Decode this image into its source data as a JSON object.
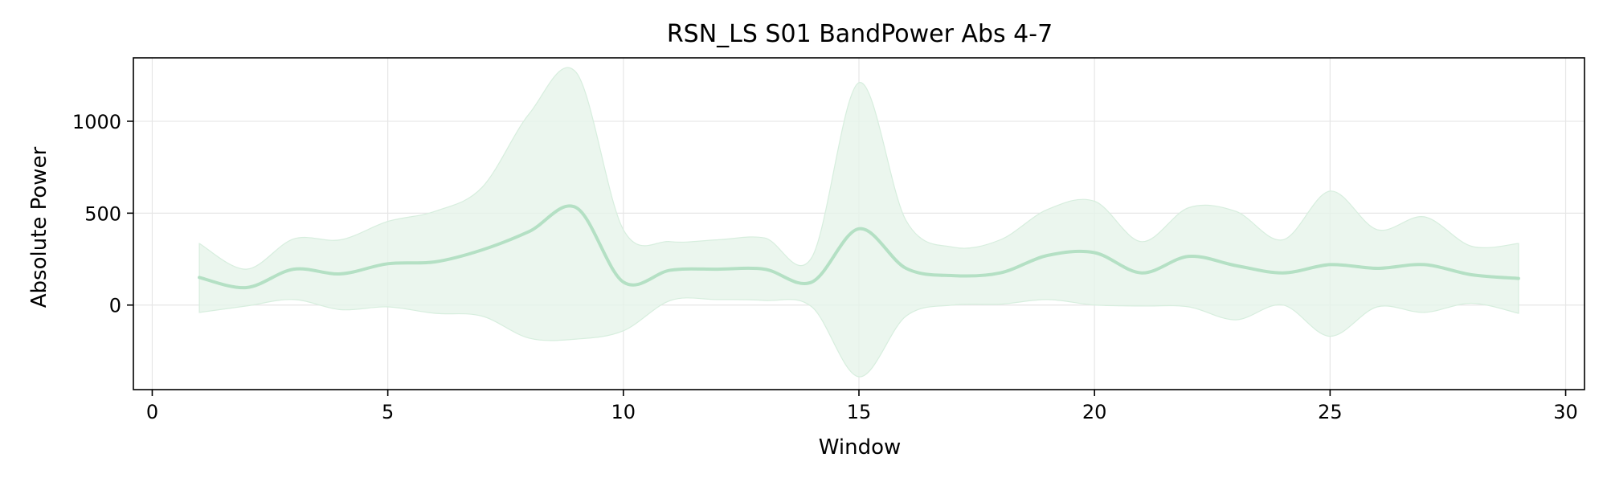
{
  "chart_data": {
    "type": "line",
    "title": "RSN_LS S01 BandPower Abs 4-7",
    "xlabel": "Window",
    "ylabel": "Absolute Power",
    "xlim": [
      -0.4,
      30.4
    ],
    "ylim": [
      -460,
      1345
    ],
    "x_ticks": [
      0,
      5,
      10,
      15,
      20,
      25,
      30
    ],
    "y_ticks": [
      0,
      500,
      1000
    ],
    "grid": true,
    "colors": {
      "line": "#b4e0c4",
      "band": "#e6f4ea",
      "grid": "#e6e6e6",
      "axis": "#000000"
    },
    "series": [
      {
        "x": [
          1,
          2,
          3,
          4,
          5,
          6,
          7,
          8,
          9,
          10,
          11,
          12,
          13,
          14,
          15,
          16,
          17,
          18,
          19,
          20,
          21,
          22,
          23,
          24,
          25,
          26,
          27,
          28,
          29
        ],
        "mean": [
          150,
          95,
          195,
          170,
          225,
          235,
          300,
          400,
          530,
          125,
          190,
          195,
          195,
          125,
          415,
          200,
          160,
          175,
          270,
          285,
          175,
          265,
          215,
          175,
          220,
          200,
          220,
          165,
          145
        ],
        "upper": [
          335,
          195,
          360,
          355,
          455,
          510,
          640,
          1040,
          1265,
          410,
          345,
          355,
          365,
          260,
          1210,
          460,
          315,
          355,
          520,
          565,
          345,
          530,
          510,
          355,
          620,
          410,
          480,
          320,
          335
        ],
        "lower": [
          -40,
          -5,
          30,
          -25,
          -10,
          -45,
          -60,
          -180,
          -185,
          -140,
          25,
          30,
          25,
          -10,
          -390,
          -60,
          0,
          5,
          30,
          0,
          -5,
          -10,
          -80,
          0,
          -170,
          -10,
          -40,
          10,
          -45
        ]
      }
    ]
  }
}
